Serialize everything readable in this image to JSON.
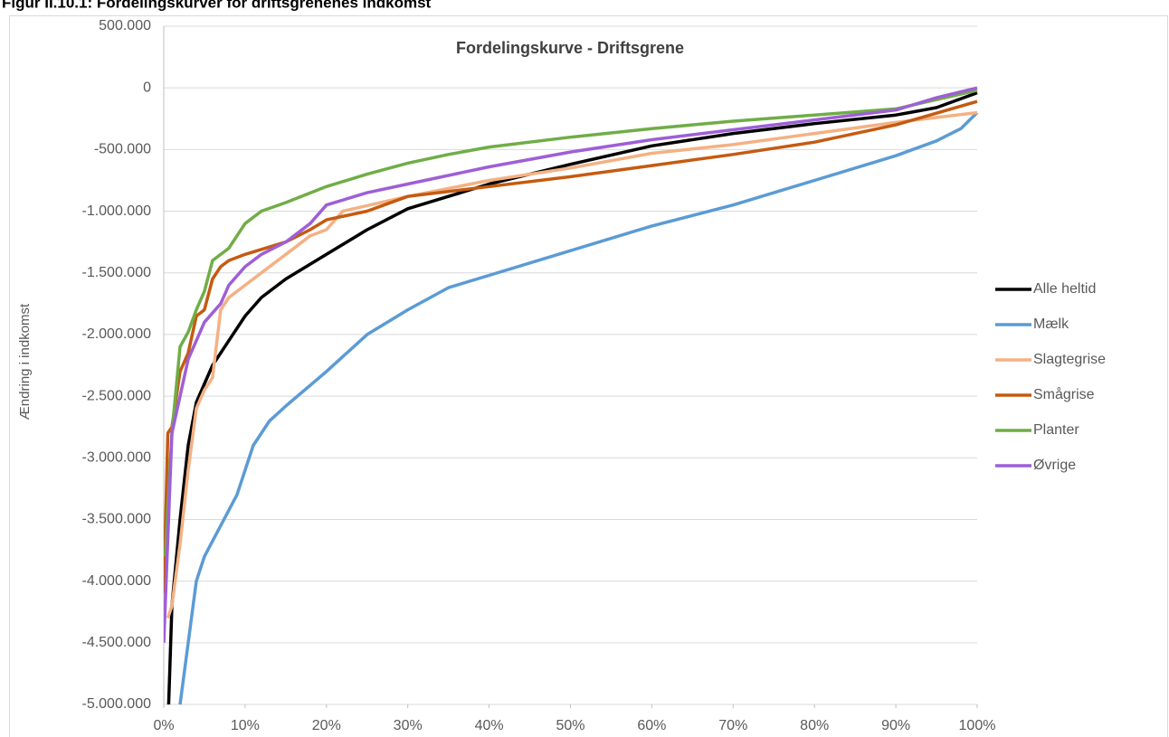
{
  "caption": "Figur II.10.1: Fordelingskurver for driftsgrenenes indkomst",
  "chart_data": {
    "type": "line",
    "title": "Fordelingskurve - Driftsgrene",
    "ylabel": "Ændring i indkomst",
    "xlim": [
      0,
      100
    ],
    "xticks": [
      {
        "value": 0,
        "label": "0%"
      },
      {
        "value": 10,
        "label": "10%"
      },
      {
        "value": 20,
        "label": "20%"
      },
      {
        "value": 30,
        "label": "30%"
      },
      {
        "value": 40,
        "label": "40%"
      },
      {
        "value": 50,
        "label": "50%"
      },
      {
        "value": 60,
        "label": "60%"
      },
      {
        "value": 70,
        "label": "70%"
      },
      {
        "value": 80,
        "label": "80%"
      },
      {
        "value": 90,
        "label": "90%"
      },
      {
        "value": 100,
        "label": "100%"
      }
    ],
    "ylim": [
      -5000000,
      500000
    ],
    "yticks": [
      {
        "value": 500000,
        "label": "500.000"
      },
      0,
      {
        "value": -500000,
        "label": "-500.000"
      },
      {
        "value": -1000000,
        "label": "-1.000.000"
      },
      {
        "value": -1500000,
        "label": "-1.500.000"
      },
      {
        "value": -2000000,
        "label": "-2.000.000"
      },
      {
        "value": -2500000,
        "label": "-2.500.000"
      },
      {
        "value": -3000000,
        "label": "-3.000.000"
      },
      {
        "value": -3500000,
        "label": "-3.500.000"
      },
      {
        "value": -4000000,
        "label": "-4.000.000"
      },
      {
        "value": -4500000,
        "label": "-4.500.000"
      },
      {
        "value": -5000000,
        "label": "-5.000.000"
      }
    ],
    "grid": true,
    "legend": "right",
    "series": [
      {
        "name": "Alle heltid",
        "color": "#000000",
        "x": [
          0.6,
          1,
          2,
          3,
          4,
          5,
          6,
          8,
          10,
          12,
          15,
          20,
          25,
          30,
          35,
          40,
          50,
          60,
          70,
          80,
          90,
          95,
          100
        ],
        "values": [
          -5000000,
          -4200000,
          -3500000,
          -2900000,
          -2550000,
          -2400000,
          -2250000,
          -2050000,
          -1850000,
          -1700000,
          -1550000,
          -1350000,
          -1150000,
          -980000,
          -880000,
          -780000,
          -620000,
          -470000,
          -370000,
          -290000,
          -220000,
          -160000,
          -40000
        ]
      },
      {
        "name": "Mælk",
        "color": "#5b9bd5",
        "x": [
          2,
          3,
          4,
          5,
          7,
          9,
          11,
          13,
          15,
          20,
          25,
          30,
          35,
          40,
          50,
          60,
          70,
          80,
          90,
          95,
          98,
          100
        ],
        "values": [
          -5000000,
          -4500000,
          -4000000,
          -3800000,
          -3550000,
          -3300000,
          -2900000,
          -2700000,
          -2580000,
          -2300000,
          -2000000,
          -1800000,
          -1620000,
          -1520000,
          -1320000,
          -1120000,
          -950000,
          -750000,
          -550000,
          -430000,
          -330000,
          -200000
        ]
      },
      {
        "name": "Slagtegrise",
        "color": "#f4b183",
        "x": [
          0.5,
          1,
          2,
          3,
          4,
          5,
          6,
          7,
          8,
          10,
          12,
          15,
          18,
          20,
          22,
          30,
          40,
          50,
          60,
          70,
          80,
          90,
          100
        ],
        "values": [
          -4300000,
          -4200000,
          -3700000,
          -3100000,
          -2600000,
          -2450000,
          -2350000,
          -1800000,
          -1700000,
          -1600000,
          -1500000,
          -1350000,
          -1200000,
          -1150000,
          -1000000,
          -880000,
          -750000,
          -650000,
          -530000,
          -460000,
          -370000,
          -280000,
          -200000
        ]
      },
      {
        "name": "Smågrise",
        "color": "#c55a11",
        "x": [
          0,
          0.5,
          1,
          2,
          3,
          4,
          5,
          6,
          7,
          8,
          10,
          15,
          18,
          20,
          25,
          30,
          40,
          50,
          60,
          70,
          80,
          90,
          100
        ],
        "values": [
          -4100000,
          -2800000,
          -2750000,
          -2300000,
          -2150000,
          -1850000,
          -1800000,
          -1550000,
          -1450000,
          -1400000,
          -1350000,
          -1250000,
          -1150000,
          -1070000,
          -1000000,
          -880000,
          -800000,
          -720000,
          -630000,
          -540000,
          -440000,
          -300000,
          -110000
        ]
      },
      {
        "name": "Planter",
        "color": "#70ad47",
        "x": [
          0.2,
          1,
          2,
          3,
          4,
          5,
          6,
          8,
          9,
          10,
          12,
          15,
          20,
          25,
          30,
          35,
          40,
          50,
          60,
          70,
          80,
          90,
          100
        ],
        "values": [
          -3800000,
          -2800000,
          -2100000,
          -1980000,
          -1800000,
          -1650000,
          -1400000,
          -1300000,
          -1200000,
          -1100000,
          -1000000,
          -930000,
          -800000,
          -700000,
          -610000,
          -540000,
          -480000,
          -400000,
          -330000,
          -270000,
          -220000,
          -170000,
          -20000
        ]
      },
      {
        "name": "Øvrige",
        "color": "#9e5fd6",
        "x": [
          0,
          1,
          2,
          3,
          4,
          5,
          7,
          8,
          10,
          12,
          15,
          18,
          20,
          25,
          30,
          40,
          50,
          60,
          70,
          80,
          90,
          95,
          100
        ],
        "values": [
          -4500000,
          -2800000,
          -2500000,
          -2200000,
          -2050000,
          -1900000,
          -1750000,
          -1600000,
          -1450000,
          -1350000,
          -1250000,
          -1100000,
          -950000,
          -850000,
          -780000,
          -640000,
          -520000,
          -420000,
          -340000,
          -260000,
          -180000,
          -80000,
          0
        ]
      }
    ]
  }
}
